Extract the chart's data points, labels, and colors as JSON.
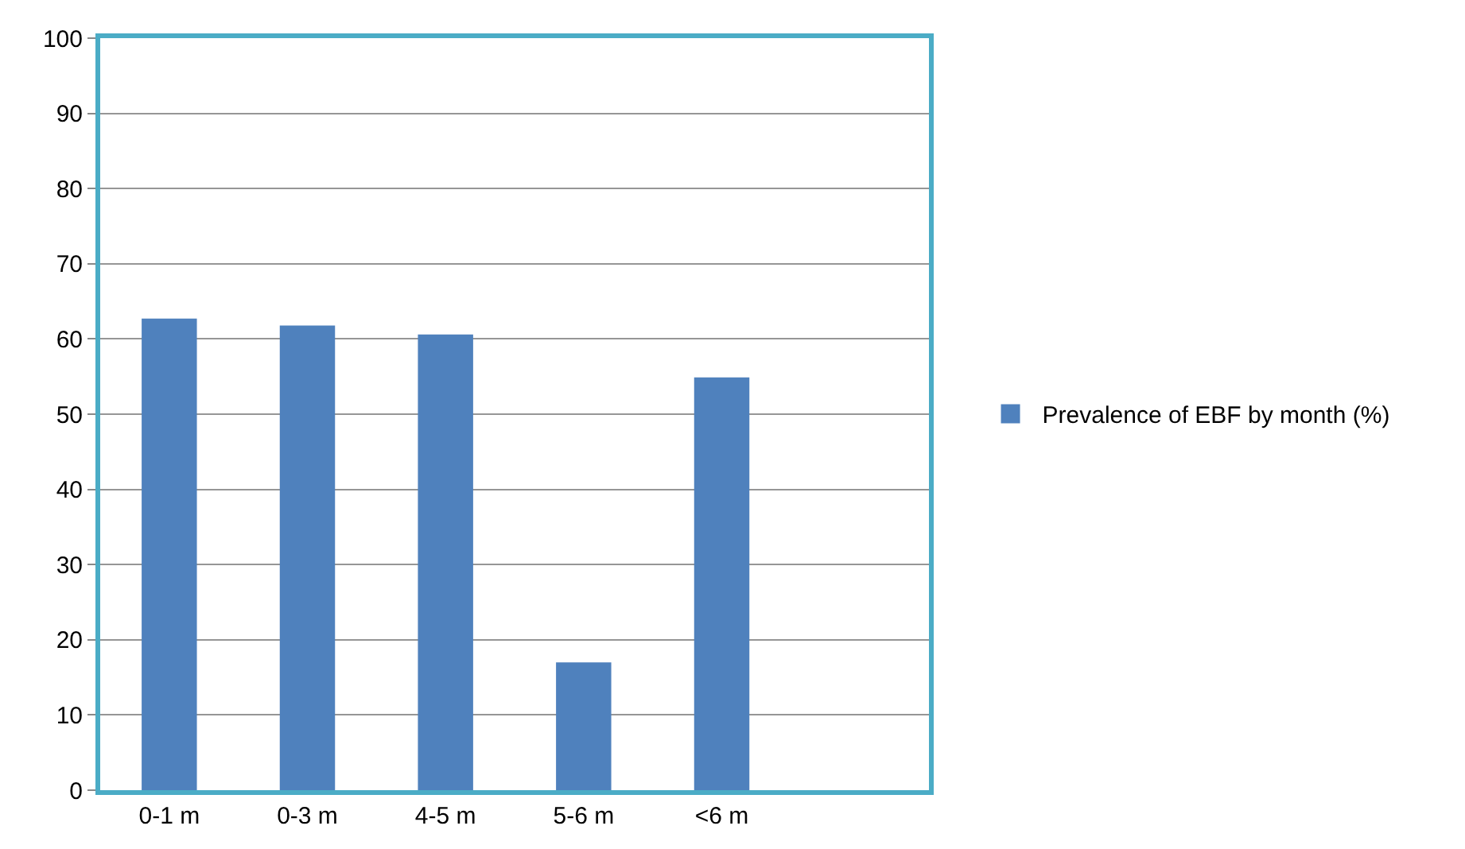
{
  "chart_data": {
    "type": "bar",
    "categories": [
      "0-1 m",
      "0-3 m",
      "4-5 m",
      "5-6 m",
      "<6 m",
      null
    ],
    "series": [
      {
        "name": "Prevalence of EBF by month (%)",
        "color": "#4f81bd",
        "values": [
          62.7,
          61.8,
          60.6,
          17.0,
          54.9,
          null
        ]
      }
    ],
    "ylim": [
      0,
      100
    ],
    "yticks": [
      0,
      10,
      20,
      30,
      40,
      50,
      60,
      70,
      80,
      90,
      100
    ],
    "grid": "y",
    "legend": "right"
  }
}
